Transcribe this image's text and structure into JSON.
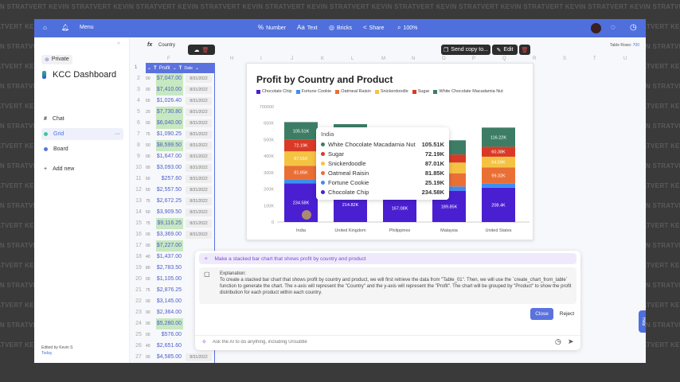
{
  "watermark": "KEVIN STRATVERT",
  "topbar": {
    "menu": "Menu",
    "number": "Number",
    "text": "Text",
    "bricks": "Bricks",
    "share": "Share",
    "zoom": "100%"
  },
  "sidebar": {
    "workspace": "Private",
    "title": "KCC Dashboard",
    "items": [
      {
        "label": "Chat",
        "icon": "hash-icon"
      },
      {
        "label": "Grid",
        "icon": "grid-dot-icon",
        "active": true
      },
      {
        "label": "Board",
        "icon": "board-dot-icon"
      }
    ],
    "add_new": "Add new",
    "edited_by": "Edited by Kevin S",
    "edited_when": "Today"
  },
  "grid": {
    "formula": "Country",
    "table_rows_label": "Table Rows:",
    "table_rows": "700",
    "col_profit": "Profit",
    "col_date": "Date",
    "col_letters": [
      "F",
      "H",
      "I",
      "J",
      "K",
      "L",
      "M",
      "N",
      "O",
      "P",
      "Q",
      "R",
      "S",
      "T",
      "U"
    ],
    "rows": [
      {
        "n": "2",
        "p": "00",
        "v": "$7,047.00",
        "hl": true
      },
      {
        "n": "3",
        "p": "00",
        "v": "$7,410.00",
        "hl": true
      },
      {
        "n": "4",
        "p": "60",
        "v": "$1,026.40"
      },
      {
        "n": "5",
        "p": "20",
        "v": "$7,730.80",
        "hl": true
      },
      {
        "n": "6",
        "p": "00",
        "v": "$6,040.00",
        "hl": true
      },
      {
        "n": "7",
        "p": "75",
        "v": "$1,090.25"
      },
      {
        "n": "8",
        "p": "50",
        "v": "$8,599.50",
        "hl": true
      },
      {
        "n": "9",
        "p": "00",
        "v": "$1,647.00"
      },
      {
        "n": "10",
        "p": "00",
        "v": "$3,093.00"
      },
      {
        "n": "11",
        "p": "60",
        "v": "$257.60"
      },
      {
        "n": "12",
        "p": "50",
        "v": "$2,557.50"
      },
      {
        "n": "13",
        "p": "75",
        "v": "$2,672.25"
      },
      {
        "n": "14",
        "p": "50",
        "v": "$3,909.50"
      },
      {
        "n": "15",
        "p": "75",
        "v": "$9,116.25",
        "hl": true
      },
      {
        "n": "16",
        "p": "00",
        "v": "$3,369.00"
      },
      {
        "n": "17",
        "p": "00",
        "v": "$7,227.00",
        "hl": true
      },
      {
        "n": "18",
        "p": "40",
        "v": "$1,437.00"
      },
      {
        "n": "19",
        "p": "80",
        "v": "$2,783.50"
      },
      {
        "n": "20",
        "p": "00",
        "v": "$1,105.00"
      },
      {
        "n": "21",
        "p": "75",
        "v": "$2,876.25"
      },
      {
        "n": "22",
        "p": "00",
        "v": "$3,145.00"
      },
      {
        "n": "23",
        "p": "00",
        "v": "$2,364.00"
      },
      {
        "n": "24",
        "p": "00",
        "v": "$5,280.00",
        "hl": true
      },
      {
        "n": "25",
        "p": "00",
        "v": "$576.00"
      },
      {
        "n": "26",
        "p": "40",
        "v": "$2,651.60"
      },
      {
        "n": "27",
        "p": "00",
        "v": "$4,585.00"
      }
    ],
    "date": "8/31/2022"
  },
  "chart_toolbar": {
    "send_copy": "Send copy to...",
    "edit": "Edit"
  },
  "chart_data": {
    "type": "bar",
    "stacked": true,
    "title": "Profit by Country and Product",
    "categories": [
      "India",
      "United Kingdom",
      "Philippines",
      "Malaysia",
      "United States"
    ],
    "ylim": [
      0,
      700000
    ],
    "yticks": [
      "0",
      "100K",
      "200K",
      "300K",
      "400K",
      "500K",
      "600K",
      "700000"
    ],
    "legend_position": "top-left",
    "series": [
      {
        "name": "Chocolate Chip",
        "color": "#4a1fd1",
        "values": [
          234580,
          214820,
          167080,
          189850,
          208400
        ],
        "labels": [
          "234.58K",
          "214.82K",
          "167.08K",
          "189.85K",
          "208.4K"
        ]
      },
      {
        "name": "Fortune Cookie",
        "color": "#3d8ef0",
        "values": [
          25190,
          24000,
          20000,
          26000,
          24000
        ]
      },
      {
        "name": "Oatmeal Raisin",
        "color": "#ea6f35",
        "values": [
          81850,
          95000,
          70000,
          80000,
          99320
        ],
        "labels": [
          "81.85K",
          "",
          "",
          "",
          "99.32K"
        ]
      },
      {
        "name": "Snickerdoodle",
        "color": "#f5c342",
        "values": [
          87010,
          85000,
          65000,
          65000,
          64550
        ],
        "labels": [
          "87.01K",
          "",
          "",
          "",
          "64.55K"
        ]
      },
      {
        "name": "Sugar",
        "color": "#d93a26",
        "values": [
          72190,
          75000,
          55000,
          49000,
          60380
        ],
        "labels": [
          "72.19K",
          "",
          "",
          "",
          "60.38K"
        ]
      },
      {
        "name": "White Chocolate Macadamia Nut",
        "color": "#3d7d66",
        "values": [
          105510,
          100000,
          80000,
          86000,
          116220
        ],
        "labels": [
          "105.51K",
          "",
          "",
          "",
          "116.22K"
        ]
      }
    ],
    "tooltip": {
      "category": "India",
      "rows": [
        {
          "name": "White Chocolate Macadamia Nut",
          "value": "105.51K",
          "color": "#3d7d66"
        },
        {
          "name": "Sugar",
          "value": "72.19K",
          "color": "#d93a26"
        },
        {
          "name": "Snickerdoodle",
          "value": "87.01K",
          "color": "#f5c342"
        },
        {
          "name": "Oatmeal Raisin",
          "value": "81.85K",
          "color": "#ea6f35"
        },
        {
          "name": "Fortune Cookie",
          "value": "25.19K",
          "color": "#3d8ef0"
        },
        {
          "name": "Chocolate Chip",
          "value": "234.58K",
          "color": "#4a1fd1"
        }
      ]
    }
  },
  "ai": {
    "prompt": "Make a stacked bar chart that shows profit by country and product",
    "explanation_title": "Explanation:",
    "explanation": "To create a stacked bar chart that shows profit by country and product, we will first retrieve the data from \"Table_01\". Then, we will use the `create_chart_from_table` function to generate the chart. The x-axis will represent the \"Country\" and the y-axis will represent the \"Profit\". The chart will be grouped by \"Product\" to show the profit distribution for each product within each country.",
    "close": "Close",
    "reject": "Reject",
    "input_placeholder": "Ask the AI to do anything, including Unsubtle"
  },
  "help": "Help"
}
